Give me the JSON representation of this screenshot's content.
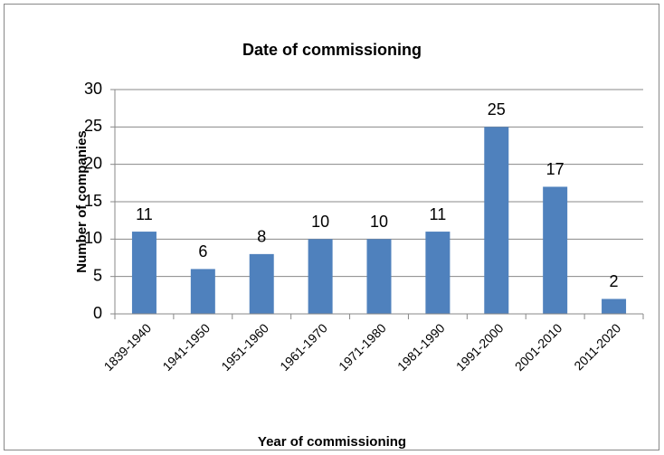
{
  "chart_data": {
    "type": "bar",
    "title": "Date of commissioning",
    "x_label": "Year of commissioning",
    "y_label": "Number of companies",
    "categories": [
      "1839-1940",
      "1941-1950",
      "1951-1960",
      "1961-1970",
      "1971-1980",
      "1981-1990",
      "1991-2000",
      "2001-2010",
      "2011-2020"
    ],
    "values": [
      11,
      6,
      8,
      10,
      10,
      11,
      25,
      17,
      2
    ],
    "color": "#4f81bd",
    "ylim": [
      0,
      30
    ],
    "yticks": [
      0,
      5,
      10,
      15,
      20,
      25,
      30
    ],
    "grid": true
  }
}
